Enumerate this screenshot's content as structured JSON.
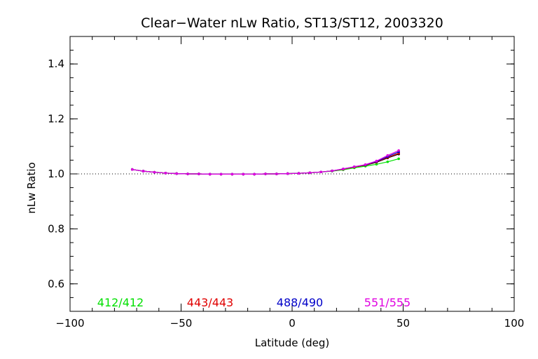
{
  "chart_data": {
    "type": "line",
    "title": "Clear−Water nLw Ratio, ST13/ST12, 2003320",
    "xlabel": "Latitude (deg)",
    "ylabel": "nLw Ratio",
    "xlim": [
      -100,
      100
    ],
    "ylim": [
      0.5,
      1.5
    ],
    "xticks": [
      -100,
      -50,
      0,
      50,
      100
    ],
    "xtick_labels": [
      "−100",
      "−50",
      "0",
      "50",
      "100"
    ],
    "yticks": [
      0.6,
      0.8,
      1.0,
      1.2,
      1.4
    ],
    "ytick_labels": [
      "0.6",
      "0.8",
      "1.0",
      "1.2",
      "1.4"
    ],
    "x_minor_step": 10,
    "y_minor_step": 0.05,
    "reference_line": 1.0,
    "grid": false,
    "legend_placement": "bottom-inside",
    "x": [
      -72,
      -67,
      -62,
      -57,
      -52,
      -47,
      -42,
      -37,
      -32,
      -27,
      -22,
      -17,
      -12,
      -7,
      -2,
      3,
      8,
      13,
      18,
      23,
      28,
      33,
      38,
      43,
      48
    ],
    "series": [
      {
        "name": "412/412",
        "color": "#00e000",
        "values": [
          1.016,
          1.01,
          1.006,
          1.003,
          1.001,
          1.0,
          1.0,
          0.999,
          0.999,
          0.999,
          0.999,
          0.999,
          1.0,
          1.0,
          1.001,
          1.002,
          1.004,
          1.007,
          1.01,
          1.015,
          1.022,
          1.028,
          1.035,
          1.044,
          1.055
        ]
      },
      {
        "name": "443/443",
        "color": "#e00000",
        "values": [
          1.016,
          1.01,
          1.006,
          1.003,
          1.001,
          1.0,
          1.0,
          0.999,
          0.999,
          0.999,
          0.999,
          0.999,
          1.0,
          1.0,
          1.001,
          1.002,
          1.004,
          1.007,
          1.011,
          1.017,
          1.025,
          1.032,
          1.043,
          1.06,
          1.075
        ]
      },
      {
        "name": "488/490",
        "color": "#0000c8",
        "values": [
          1.016,
          1.01,
          1.006,
          1.003,
          1.001,
          1.0,
          1.0,
          0.999,
          0.999,
          0.999,
          0.999,
          0.999,
          1.0,
          1.0,
          1.001,
          1.002,
          1.004,
          1.007,
          1.011,
          1.018,
          1.026,
          1.033,
          1.045,
          1.063,
          1.08
        ]
      },
      {
        "name": "551/555",
        "color": "#e000e0",
        "values": [
          1.016,
          1.01,
          1.006,
          1.003,
          1.001,
          1.0,
          1.0,
          0.999,
          0.999,
          0.999,
          0.999,
          0.999,
          1.0,
          1.0,
          1.001,
          1.002,
          1.004,
          1.007,
          1.011,
          1.018,
          1.026,
          1.034,
          1.047,
          1.067,
          1.085
        ]
      }
    ],
    "extra_series_color": "#000000",
    "extra_series_values": [
      1.016,
      1.01,
      1.006,
      1.003,
      1.001,
      1.0,
      1.0,
      0.999,
      0.999,
      0.999,
      0.999,
      0.999,
      1.0,
      1.0,
      1.001,
      1.002,
      1.004,
      1.007,
      1.011,
      1.017,
      1.025,
      1.031,
      1.042,
      1.058,
      1.072
    ]
  }
}
